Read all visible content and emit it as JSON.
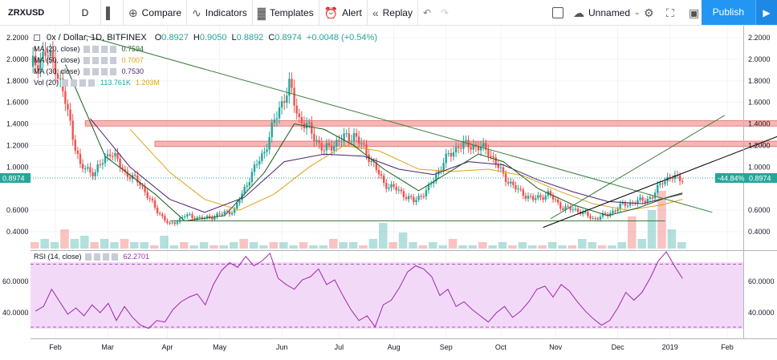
{
  "toolbar": {
    "symbol": "ZRXUSD",
    "interval": "D",
    "compare": "Compare",
    "indicators": "Indicators",
    "templates": "Templates",
    "alert": "Alert",
    "replay": "Replay",
    "layout_name": "Unnamed",
    "publish": "Publish"
  },
  "legend": {
    "title": "0x / Dollar, 1D, BITFINEX",
    "o_label": "O",
    "o_val": "0.8927",
    "h_label": "H",
    "h_val": "0.9050",
    "l_label": "L",
    "l_val": "0.8892",
    "c_label": "C",
    "c_val": "0.8974",
    "change": "+0.0048 (+0.54%)",
    "ma1_label": "MA (20, close)",
    "ma1_val": "0.7594",
    "ma2_label": "MA (50, close)",
    "ma2_val": "0.7007",
    "ma3_label": "MA (30, close)",
    "ma3_val": "0.7530",
    "vol_label": "Vol (20)",
    "vol_val1": "113.761K",
    "vol_val2": "1.203M",
    "rsi_label": "RSI (14, close)",
    "rsi_val": "62.2701"
  },
  "price_tag": {
    "left": "0.8974",
    "right_pct": "-44.84%",
    "right_price": "0.8974"
  },
  "colors": {
    "up": "#26a69a",
    "down": "#ef5350",
    "ma20": "#1a5e1a",
    "ma50": "#e0a21a",
    "ma30": "#4b1f6f",
    "rsi": "#9c27b0",
    "rsi_fill": "#f3d9f8",
    "zone": "#f4a9a8",
    "trend_green": "#3a7d3a",
    "trend_black": "#000000",
    "publish": "#2196f3"
  },
  "chart_data": {
    "type": "candlestick",
    "title": "0x / Dollar, 1D, BITFINEX",
    "x_ticks": [
      "Feb",
      "Mar",
      "Apr",
      "May",
      "Jun",
      "Jul",
      "Aug",
      "Sep",
      "Oct",
      "Nov",
      "Dec",
      "2019",
      "Feb"
    ],
    "y_ticks": [
      "2.2000",
      "2.0000",
      "1.8000",
      "1.6000",
      "1.4000",
      "1.2000",
      "1.0000",
      "0.6000",
      "0.4000"
    ],
    "ylim": [
      0.22,
      2.28
    ],
    "price_path": [
      [
        0,
        1.93
      ],
      [
        6,
        2.05
      ],
      [
        10,
        1.95
      ],
      [
        14,
        1.6
      ],
      [
        20,
        1.0
      ],
      [
        26,
        0.95
      ],
      [
        32,
        1.15
      ],
      [
        38,
        0.95
      ],
      [
        44,
        0.85
      ],
      [
        50,
        0.62
      ],
      [
        56,
        0.46
      ],
      [
        62,
        0.55
      ],
      [
        70,
        0.52
      ],
      [
        76,
        0.56
      ],
      [
        82,
        0.6
      ],
      [
        88,
        0.9
      ],
      [
        94,
        1.15
      ],
      [
        100,
        1.55
      ],
      [
        104,
        1.75
      ],
      [
        108,
        1.45
      ],
      [
        112,
        1.35
      ],
      [
        118,
        1.15
      ],
      [
        124,
        1.25
      ],
      [
        130,
        1.3
      ],
      [
        136,
        1.1
      ],
      [
        142,
        0.85
      ],
      [
        148,
        0.78
      ],
      [
        154,
        0.68
      ],
      [
        160,
        0.8
      ],
      [
        166,
        1.05
      ],
      [
        172,
        1.2
      ],
      [
        178,
        1.2
      ],
      [
        184,
        1.15
      ],
      [
        190,
        0.92
      ],
      [
        196,
        0.78
      ],
      [
        202,
        0.7
      ],
      [
        208,
        0.75
      ],
      [
        214,
        0.62
      ],
      [
        220,
        0.6
      ],
      [
        226,
        0.52
      ],
      [
        232,
        0.56
      ],
      [
        238,
        0.65
      ],
      [
        244,
        0.68
      ],
      [
        250,
        0.72
      ],
      [
        254,
        0.88
      ],
      [
        258,
        0.9
      ],
      [
        262,
        0.9
      ]
    ],
    "ma20": [
      [
        14,
        1.95
      ],
      [
        30,
        1.1
      ],
      [
        50,
        0.75
      ],
      [
        62,
        0.5
      ],
      [
        78,
        0.55
      ],
      [
        94,
        0.95
      ],
      [
        106,
        1.4
      ],
      [
        118,
        1.35
      ],
      [
        130,
        1.2
      ],
      [
        142,
        0.98
      ],
      [
        156,
        0.78
      ],
      [
        168,
        0.95
      ],
      [
        180,
        1.12
      ],
      [
        190,
        1.05
      ],
      [
        204,
        0.8
      ],
      [
        218,
        0.65
      ],
      [
        232,
        0.55
      ],
      [
        244,
        0.62
      ],
      [
        256,
        0.72
      ],
      [
        262,
        0.76
      ]
    ],
    "ma50": [
      [
        40,
        1.35
      ],
      [
        56,
        0.95
      ],
      [
        70,
        0.7
      ],
      [
        84,
        0.6
      ],
      [
        98,
        0.75
      ],
      [
        112,
        1.0
      ],
      [
        126,
        1.2
      ],
      [
        140,
        1.15
      ],
      [
        156,
        0.98
      ],
      [
        170,
        0.96
      ],
      [
        184,
        0.98
      ],
      [
        198,
        0.92
      ],
      [
        212,
        0.78
      ],
      [
        226,
        0.66
      ],
      [
        240,
        0.6
      ],
      [
        254,
        0.65
      ],
      [
        262,
        0.7
      ]
    ],
    "ma30": [
      [
        24,
        1.45
      ],
      [
        40,
        1.0
      ],
      [
        56,
        0.7
      ],
      [
        70,
        0.58
      ],
      [
        86,
        0.72
      ],
      [
        102,
        1.05
      ],
      [
        118,
        1.12
      ],
      [
        134,
        1.1
      ],
      [
        148,
        0.98
      ],
      [
        162,
        0.93
      ],
      [
        176,
        1.05
      ],
      [
        190,
        1.02
      ],
      [
        204,
        0.88
      ],
      [
        218,
        0.77
      ],
      [
        232,
        0.68
      ],
      [
        246,
        0.66
      ],
      [
        262,
        0.75
      ]
    ],
    "zones": [
      {
        "x0": 22,
        "x1": 303,
        "y0": 1.38,
        "y1": 1.43
      },
      {
        "x0": 50,
        "x1": 313,
        "y0": 1.19,
        "y1": 1.24
      }
    ],
    "trendlines": [
      {
        "x0": 22,
        "y0": 2.22,
        "x1": 274,
        "y1": 0.58,
        "color": "trend_green"
      },
      {
        "x0": 56,
        "y0": 0.5,
        "x1": 255,
        "y1": 0.5,
        "color": "trend_green"
      },
      {
        "x0": 209,
        "y0": 0.52,
        "x1": 279,
        "y1": 1.48,
        "color": "trend_green"
      },
      {
        "x0": 206,
        "y0": 0.44,
        "x1": 302,
        "y1": 1.3,
        "color": "trend_black"
      }
    ],
    "volume": [
      2,
      3,
      2,
      6,
      3,
      4,
      2,
      3,
      2,
      3,
      2,
      2,
      1,
      4,
      1,
      2,
      1,
      2,
      1,
      1,
      2,
      3,
      2,
      1,
      2,
      2,
      1,
      2,
      1,
      1,
      3,
      2,
      2,
      1,
      3,
      8,
      2,
      5,
      2,
      1,
      2,
      1,
      3,
      1,
      1,
      2,
      1,
      2,
      1,
      2,
      1,
      1,
      2,
      1,
      1,
      3,
      2,
      1,
      1,
      2,
      10,
      3,
      12,
      18,
      6,
      2
    ],
    "rsi": {
      "ylim": [
        25,
        85
      ],
      "levels": [
        70,
        30
      ],
      "ticks": [
        "60.0000",
        "40.0000"
      ],
      "values": [
        41,
        44,
        55,
        47,
        39,
        43,
        38,
        45,
        40,
        46,
        35,
        44,
        37,
        32,
        30,
        35,
        34,
        42,
        47,
        50,
        52,
        45,
        58,
        67,
        72,
        69,
        76,
        70,
        73,
        78,
        62,
        58,
        55,
        61,
        63,
        68,
        58,
        61,
        51,
        42,
        35,
        38,
        31,
        45,
        48,
        56,
        66,
        70,
        68,
        63,
        51,
        55,
        44,
        47,
        42,
        38,
        34,
        40,
        44,
        37,
        41,
        47,
        55,
        57,
        50,
        58,
        54,
        47,
        41,
        36,
        32,
        35,
        43,
        53,
        48,
        53,
        62,
        73,
        79,
        70,
        62
      ]
    }
  }
}
